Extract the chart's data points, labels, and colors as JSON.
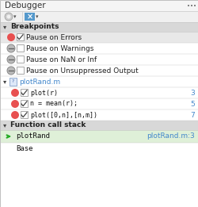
{
  "title": "Debugger",
  "bg_color": "#efefef",
  "white": "#ffffff",
  "title_bar_color": "#f5f5f5",
  "selected_row_bg": "#dff0d8",
  "header_row_bg": "#e8e8e8",
  "pause_error_bg": "#e8e8e8",
  "section_hdr_bg": "#d8d8d8",
  "toolbar_bg": "#f0f0f0",
  "border_color": "#c0c0c0",
  "divider_color": "#c8c8c8",
  "text_color": "#222222",
  "blue_text": "#4488cc",
  "green_arrow_color": "#22aa22",
  "red_circle_color": "#e85050",
  "gray_minus_color": "#a0a0a0",
  "gray_minus_border": "#888888",
  "check_color": "#444444",
  "mono_font": "monospace",
  "sans_font": "sans-serif",
  "title_fontsize": 7.5,
  "row_fontsize": 6.5,
  "mono_fontsize": 6.0,
  "section_header_text": [
    "Breakpoints",
    "Function call stack"
  ],
  "pause_items": [
    {
      "text": "Pause on Errors",
      "has_red": true,
      "checked": true
    },
    {
      "text": "Pause on Warnings",
      "has_red": false,
      "checked": false
    },
    {
      "text": "Pause on NaN or Inf",
      "has_red": false,
      "checked": false
    },
    {
      "text": "Pause on Unsuppressed Output",
      "has_red": false,
      "checked": false
    }
  ],
  "file_name": "plotRand.m",
  "breakpoint_items": [
    {
      "text": "plot(r)",
      "line": "3"
    },
    {
      "text": "n = mean(r);",
      "line": "5"
    },
    {
      "text": "plot([0,n],[n,m])",
      "line": "7"
    }
  ],
  "call_stack_items": [
    {
      "func": "plotRand",
      "location": "plotRand.m:3",
      "selected": true
    },
    {
      "func": "Base",
      "location": "",
      "selected": false
    }
  ]
}
